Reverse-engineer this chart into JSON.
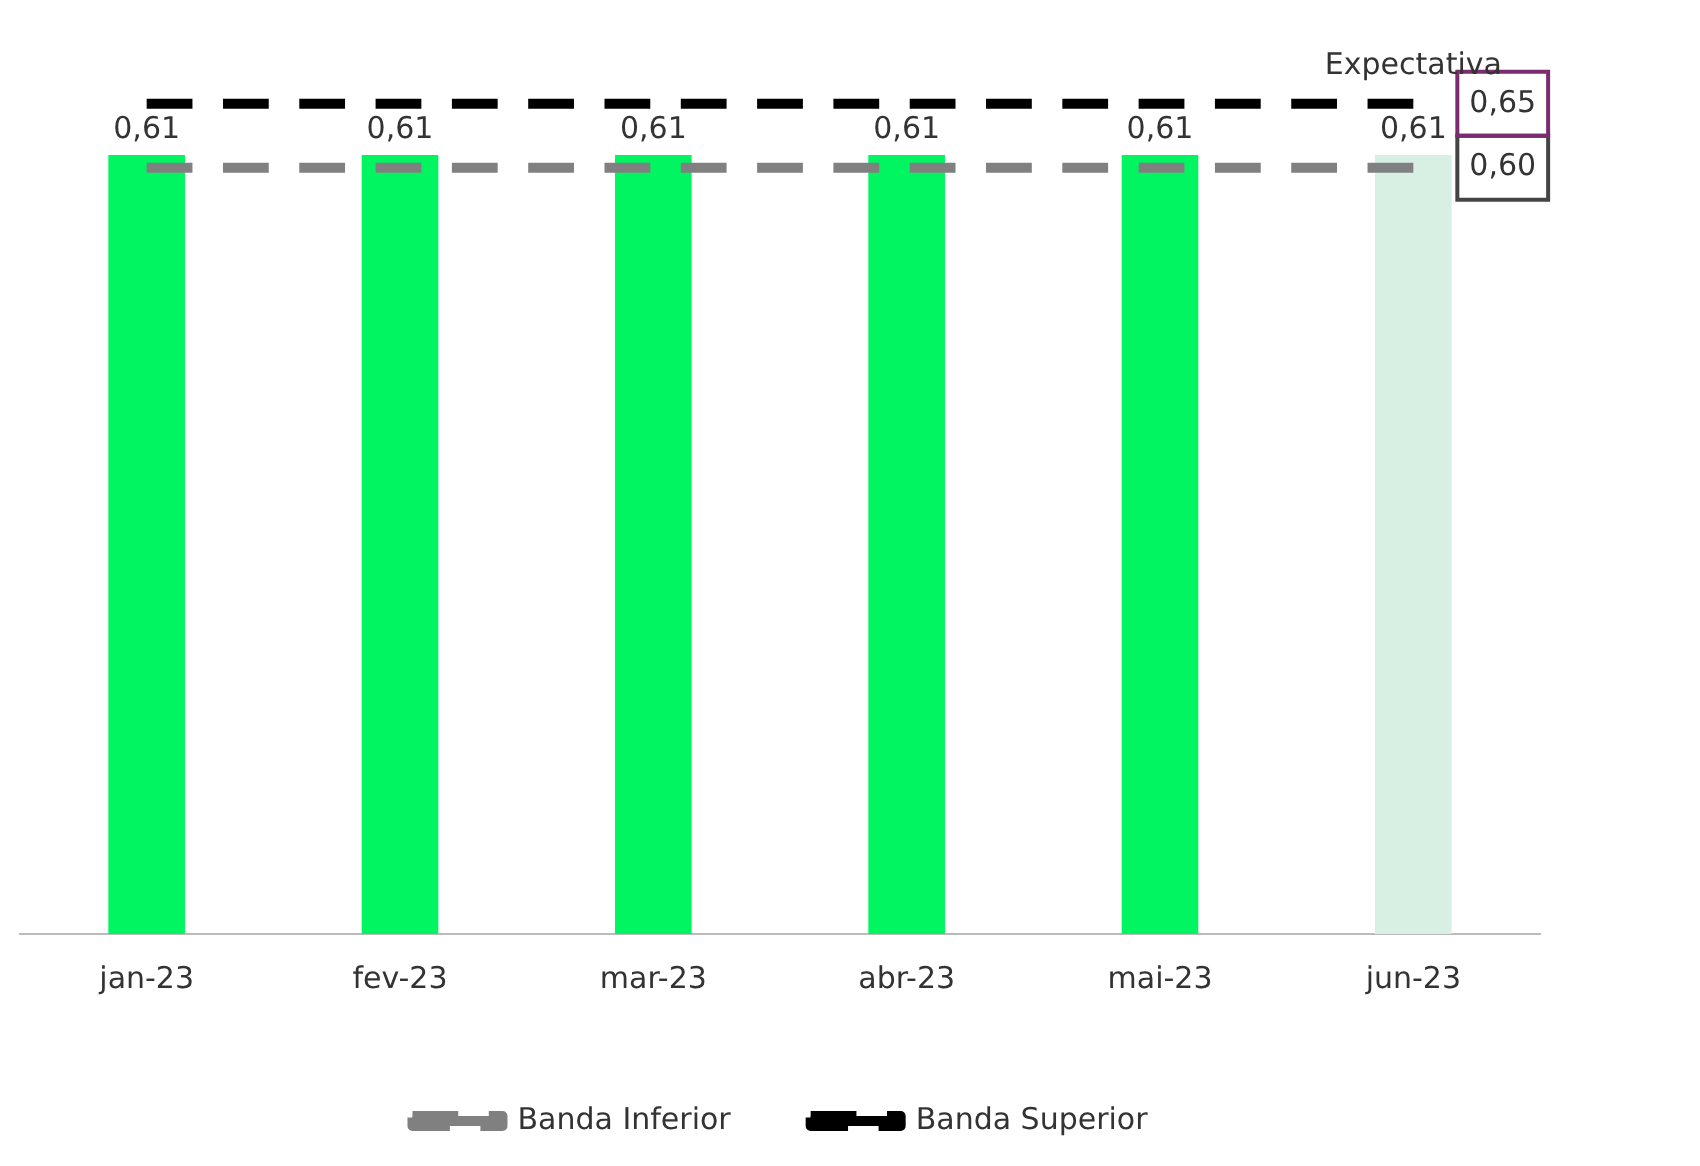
{
  "chart_data": {
    "type": "bar",
    "categories": [
      "jan-23",
      "fev-23",
      "mar-23",
      "abr-23",
      "mai-23",
      "jun-23"
    ],
    "series": [
      {
        "colors": [
          "#00f560",
          "#00f560",
          "#00f560",
          "#00f560",
          "#00f560",
          "#d8f0e4"
        ],
        "values": [
          0.61,
          0.61,
          0.61,
          0.61,
          0.61,
          0.61
        ],
        "value_labels": [
          "0,61",
          "0,61",
          "0,61",
          "0,61",
          "0,61",
          "0,61"
        ]
      },
      {
        "type": "line",
        "name": "Banda Inferior",
        "color": "#808080",
        "line_style": "dashed",
        "marker": "none",
        "values": [
          0.6,
          0.6,
          0.6,
          0.6,
          0.6,
          0.6
        ],
        "value_labels": [
          null,
          null,
          null,
          null,
          null,
          "0,60"
        ]
      },
      {
        "type": "line",
        "name": "Banda Superior",
        "color": "#000000",
        "line_style": "dashed",
        "marker": "none",
        "values": [
          0.65,
          0.65,
          0.65,
          0.65,
          0.65,
          0.65
        ],
        "value_labels": [
          null,
          null,
          null,
          null,
          null,
          "0,65"
        ]
      }
    ],
    "annotations": [
      {
        "text": "Expectativa",
        "x": "jun-23",
        "y": 0.61
      }
    ],
    "legend": "bottom",
    "grid": false
  }
}
